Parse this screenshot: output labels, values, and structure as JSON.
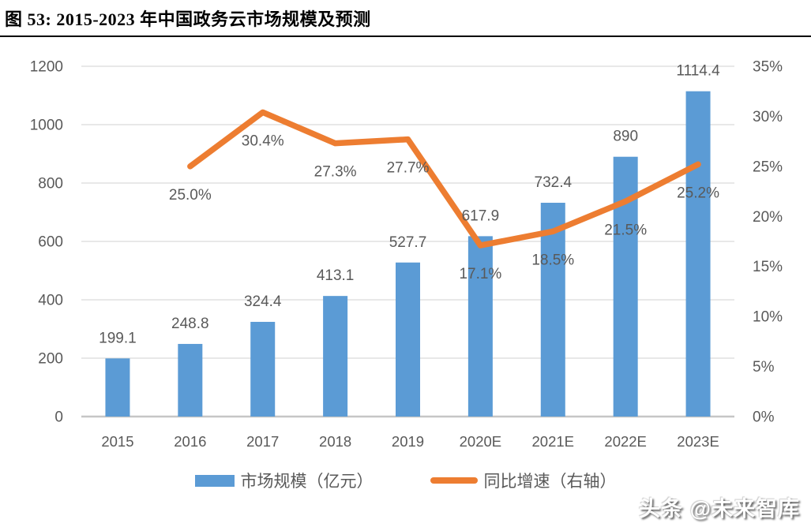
{
  "header": {
    "title": "图 53:  2015-2023 年中国政务云市场规模及预测"
  },
  "watermark": {
    "text": "头条 @未来智库"
  },
  "colors": {
    "bar": "#5B9BD5",
    "line": "#ED7D31",
    "gridline": "#D9D9D9",
    "baseline": "#C6C6C6",
    "label": "#595959"
  },
  "chart_data": {
    "type": "bar",
    "subtype": "bar-line-combo",
    "title": "图 53: 2015-2023 年中国政务云市场规模及预测",
    "categories": [
      "2015",
      "2016",
      "2017",
      "2018",
      "2019",
      "2020E",
      "2021E",
      "2022E",
      "2023E"
    ],
    "series": [
      {
        "name": "市场规模（亿元）",
        "type": "bar",
        "axis": "left",
        "color": "#5B9BD5",
        "values": [
          199.1,
          248.8,
          324.4,
          413.1,
          527.7,
          617.9,
          732.4,
          890,
          1114.4
        ],
        "labels": [
          "199.1",
          "248.8",
          "324.4",
          "413.1",
          "527.7",
          "617.9",
          "732.4",
          "890",
          "1114.4"
        ]
      },
      {
        "name": "同比增速（右轴）",
        "type": "line",
        "axis": "right",
        "color": "#ED7D31",
        "values": [
          null,
          25.0,
          30.4,
          27.3,
          27.7,
          17.1,
          18.5,
          21.5,
          25.2
        ],
        "labels": [
          null,
          "25.0%",
          "30.4%",
          "27.3%",
          "27.7%",
          "17.1%",
          "18.5%",
          "21.5%",
          "25.2%"
        ]
      }
    ],
    "left_axis": {
      "min": 0,
      "max": 1200,
      "step": 200,
      "ticks": [
        "0",
        "200",
        "400",
        "600",
        "800",
        "1000",
        "1200"
      ]
    },
    "right_axis": {
      "min": 0,
      "max": 35,
      "step": 5,
      "ticks": [
        "0%",
        "5%",
        "10%",
        "15%",
        "20%",
        "25%",
        "30%",
        "35%"
      ]
    },
    "grid": true,
    "legend_position": "bottom"
  }
}
